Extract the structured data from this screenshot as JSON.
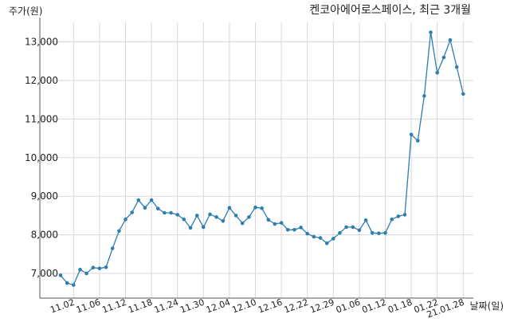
{
  "chart_data": {
    "type": "line",
    "title": "켄코아에어로스페이스, 최근 3개월",
    "ylabel": "주가(원)",
    "xlabel": "날짜(일)",
    "ylim": [
      6400,
      13700
    ],
    "yticks": [
      7000,
      8000,
      9000,
      10000,
      11000,
      12000,
      13000
    ],
    "ytick_labels": [
      "7,000",
      "8,000",
      "9,000",
      "10,000",
      "11,000",
      "12,000",
      "13,000"
    ],
    "xtick_labels": [
      "11.02",
      "11.06",
      "11.12",
      "11.18",
      "11.24",
      "11.30",
      "12.04",
      "12.10",
      "12.16",
      "12.22",
      "12.29",
      "01.06",
      "01.12",
      "01.18",
      "01.22",
      "21.01.28"
    ],
    "xtick_index": [
      2,
      6,
      10,
      14,
      18,
      22,
      26,
      30,
      34,
      38,
      42,
      46,
      50,
      54,
      58,
      62
    ],
    "grid": true,
    "color": "#2e7eb0",
    "values": [
      6950,
      6750,
      6700,
      7100,
      7000,
      7150,
      7130,
      7160,
      7650,
      8100,
      8400,
      8580,
      8900,
      8700,
      8900,
      8680,
      8570,
      8570,
      8520,
      8400,
      8180,
      8500,
      8200,
      8530,
      8460,
      8360,
      8700,
      8500,
      8300,
      8460,
      8710,
      8690,
      8390,
      8280,
      8310,
      8130,
      8130,
      8190,
      8030,
      7950,
      7920,
      7780,
      7900,
      8050,
      8200,
      8200,
      8120,
      8380,
      8050,
      8040,
      8050,
      8400,
      8480,
      8520,
      10600,
      10440,
      11600,
      13250,
      12200,
      12600,
      13050,
      12350,
      11650
    ]
  }
}
